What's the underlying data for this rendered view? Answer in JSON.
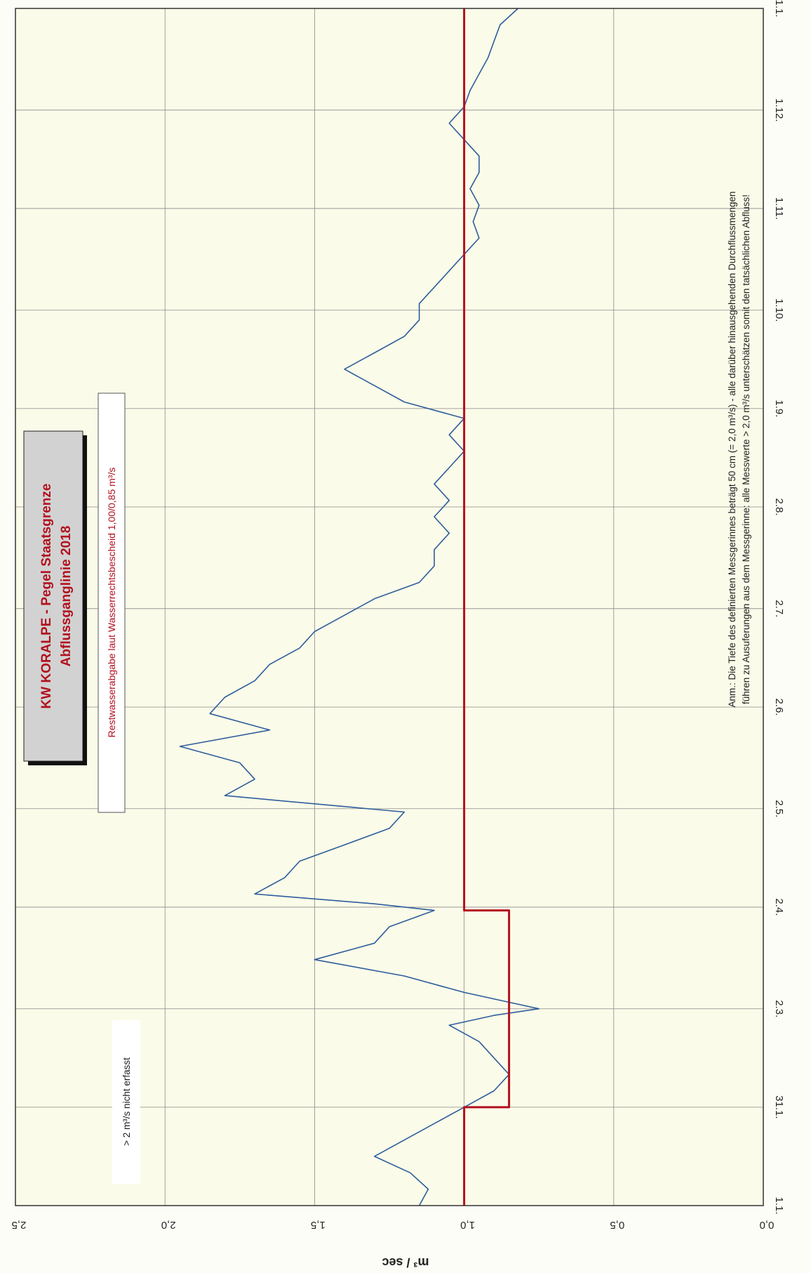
{
  "chart_data": {
    "type": "line",
    "title": "KW KORALPE - Pegel Staatsgrenze",
    "subtitle": "Abflussganglinie  2018",
    "ylabel": "m³ / sec",
    "ylim": [
      0,
      2.5
    ],
    "y_ticks": [
      "0,0",
      "0,5",
      "1,0",
      "1,5",
      "2,0",
      "2,5"
    ],
    "x_ticks": [
      "1.1.",
      "31.1.",
      "2.3.",
      "2.4.",
      "2.5.",
      "2.6.",
      "2.7.",
      "2.8.",
      "1.9.",
      "1.10.",
      "1.11.",
      "1.12.",
      "1.1."
    ],
    "x_tick_days": [
      0,
      30,
      60,
      91,
      121,
      152,
      182,
      213,
      243,
      273,
      304,
      334,
      365
    ],
    "grid": true,
    "annotations": {
      "restwasser": "Restwasserabgabe laut Wasserrechtsbescheid   1,00/0,85 m³/s",
      "not_recorded": "> 2 m³/s nicht erfasst",
      "note_line1": "Anm.: Die Tiefe des definierten Messgerinnes beträgt 50 cm (= 2,0 m³/s) - alle darüber hinausgehenden Durchflussmengen",
      "note_line2": "führen zu Ausuferungen aus dem Messgerinne: alle Messwerte > 2,0 m³/s unterschätzen somit den tatsächlichen Abfluss!"
    },
    "series": [
      {
        "name": "Abfluss",
        "color": "#2d5d9c",
        "x": [
          0,
          5,
          10,
          15,
          20,
          25,
          30,
          35,
          40,
          45,
          50,
          55,
          58,
          60,
          65,
          70,
          75,
          80,
          85,
          90,
          92,
          95,
          100,
          105,
          110,
          115,
          120,
          125,
          130,
          135,
          140,
          145,
          150,
          155,
          160,
          165,
          170,
          175,
          180,
          185,
          190,
          195,
          200,
          205,
          210,
          215,
          220,
          225,
          230,
          235,
          240,
          245,
          250,
          255,
          260,
          265,
          270,
          275,
          280,
          285,
          290,
          295,
          300,
          305,
          310,
          315,
          320,
          325,
          330,
          335,
          340,
          345,
          350,
          355,
          360,
          365
        ],
        "y": [
          1.15,
          1.12,
          1.18,
          1.3,
          1.2,
          1.1,
          1.0,
          0.9,
          0.85,
          0.9,
          0.95,
          1.05,
          0.9,
          0.75,
          1.0,
          1.2,
          1.5,
          1.3,
          1.25,
          1.1,
          1.3,
          1.7,
          1.6,
          1.55,
          1.4,
          1.25,
          1.2,
          1.8,
          1.7,
          1.75,
          1.95,
          1.65,
          1.85,
          1.8,
          1.7,
          1.65,
          1.55,
          1.5,
          1.4,
          1.3,
          1.15,
          1.1,
          1.1,
          1.05,
          1.1,
          1.05,
          1.1,
          1.05,
          1.0,
          1.05,
          1.0,
          1.2,
          1.3,
          1.4,
          1.3,
          1.2,
          1.15,
          1.15,
          1.1,
          1.05,
          1.0,
          0.95,
          0.97,
          0.95,
          0.98,
          0.95,
          0.95,
          1.0,
          1.05,
          1.0,
          0.98,
          0.95,
          0.92,
          0.9,
          0.88,
          0.82
        ]
      },
      {
        "name": "Restwasser",
        "color": "#b3101e",
        "x": [
          0,
          30,
          30,
          90,
          90,
          365
        ],
        "y": [
          1.0,
          1.0,
          0.85,
          0.85,
          1.0,
          1.0
        ]
      }
    ]
  }
}
